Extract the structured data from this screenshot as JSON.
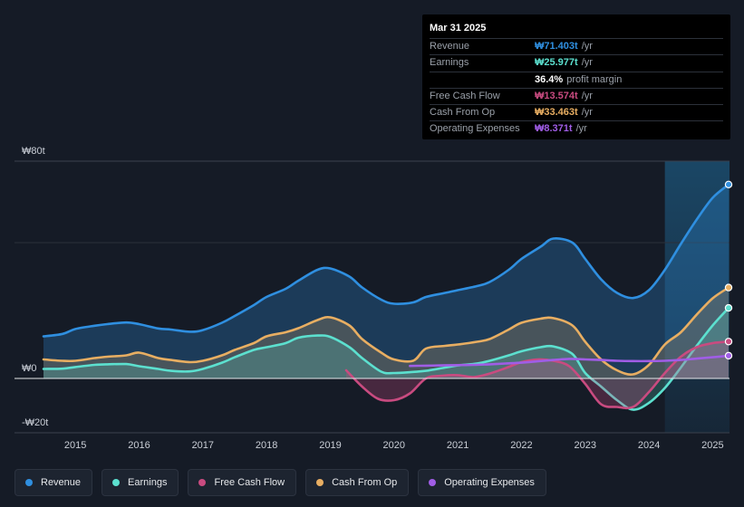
{
  "chart_data": {
    "type": "area",
    "currency_prefix": "₩",
    "ylim": [
      -20,
      80
    ],
    "y_tick_labels": [
      {
        "value": 80,
        "label": "₩80t"
      },
      {
        "value": 0,
        "label": "₩0"
      },
      {
        "value": -20,
        "label": "-₩20t"
      }
    ],
    "x_ticks": [
      {
        "value": 2015,
        "label": "2015"
      },
      {
        "value": 2016,
        "label": "2016"
      },
      {
        "value": 2017,
        "label": "2017"
      },
      {
        "value": 2018,
        "label": "2018"
      },
      {
        "value": 2019,
        "label": "2019"
      },
      {
        "value": 2020,
        "label": "2020"
      },
      {
        "value": 2021,
        "label": "2021"
      },
      {
        "value": 2022,
        "label": "2022"
      },
      {
        "value": 2023,
        "label": "2023"
      },
      {
        "value": 2024,
        "label": "2024"
      },
      {
        "value": 2025,
        "label": "2025"
      }
    ],
    "xlim": [
      2014.5,
      2025.25
    ],
    "highlight_start": 2024.25,
    "series": [
      {
        "name": "Revenue",
        "color": "#2f8fe0",
        "x": [
          2014.5,
          2014.8,
          2015.0,
          2015.3,
          2015.5,
          2015.8,
          2016.0,
          2016.3,
          2016.5,
          2016.8,
          2017.0,
          2017.3,
          2017.5,
          2017.8,
          2018.0,
          2018.3,
          2018.5,
          2018.8,
          2019.0,
          2019.3,
          2019.5,
          2019.8,
          2020.0,
          2020.3,
          2020.5,
          2020.8,
          2021.0,
          2021.3,
          2021.5,
          2021.8,
          2022.0,
          2022.3,
          2022.5,
          2022.8,
          2023.0,
          2023.25,
          2023.5,
          2023.75,
          2024.0,
          2024.25,
          2024.5,
          2024.75,
          2025.0,
          2025.25
        ],
        "values": [
          15.5,
          16.4,
          18.2,
          19.4,
          20.0,
          20.6,
          20.0,
          18.4,
          18.0,
          17.2,
          17.8,
          20.5,
          23.0,
          27.0,
          30.0,
          33.0,
          36.0,
          40.0,
          40.5,
          37.5,
          33.5,
          29.0,
          27.5,
          28.0,
          30.0,
          31.5,
          32.5,
          34.0,
          35.5,
          40.0,
          44.0,
          48.5,
          51.5,
          50.0,
          44.0,
          36.5,
          31.5,
          29.6,
          32.5,
          40.0,
          49.5,
          58.5,
          66.5,
          71.4
        ]
      },
      {
        "name": "Earnings",
        "color": "#5ce0cf",
        "x": [
          2014.5,
          2014.8,
          2015.0,
          2015.3,
          2015.5,
          2015.8,
          2016.0,
          2016.3,
          2016.5,
          2016.8,
          2017.0,
          2017.3,
          2017.5,
          2017.8,
          2018.0,
          2018.3,
          2018.5,
          2018.8,
          2019.0,
          2019.3,
          2019.5,
          2019.8,
          2020.0,
          2020.3,
          2020.5,
          2020.8,
          2021.0,
          2021.3,
          2021.5,
          2021.8,
          2022.0,
          2022.3,
          2022.5,
          2022.8,
          2023.0,
          2023.25,
          2023.5,
          2023.75,
          2024.0,
          2024.25,
          2024.5,
          2024.75,
          2025.0,
          2025.25
        ],
        "values": [
          3.5,
          3.6,
          4.2,
          5.0,
          5.2,
          5.3,
          4.5,
          3.5,
          2.8,
          2.6,
          3.5,
          5.8,
          7.8,
          10.5,
          11.5,
          13.0,
          15.0,
          15.8,
          15.3,
          11.5,
          7.5,
          2.5,
          2.0,
          2.4,
          2.8,
          4.0,
          4.8,
          5.5,
          6.5,
          8.5,
          10.0,
          11.5,
          11.8,
          9.0,
          2.0,
          -3.0,
          -8.0,
          -11.5,
          -9.0,
          -3.5,
          4.0,
          12.0,
          19.5,
          25.977
        ]
      },
      {
        "name": "Free Cash Flow",
        "color": "#c94b80",
        "x": [
          2019.25,
          2019.5,
          2019.75,
          2020.0,
          2020.25,
          2020.5,
          2020.75,
          2021.0,
          2021.25,
          2021.5,
          2021.75,
          2022.0,
          2022.25,
          2022.5,
          2022.75,
          2023.0,
          2023.25,
          2023.5,
          2023.75,
          2024.0,
          2024.25,
          2024.5,
          2024.75,
          2025.0,
          2025.25
        ],
        "values": [
          3.0,
          -3.0,
          -7.5,
          -8.0,
          -5.5,
          0.0,
          1.0,
          1.2,
          0.5,
          1.8,
          3.8,
          6.0,
          7.0,
          6.5,
          4.5,
          -2.0,
          -9.5,
          -10.5,
          -10.5,
          -5.0,
          2.0,
          8.0,
          11.5,
          13.0,
          13.574
        ]
      },
      {
        "name": "Cash From Op",
        "color": "#e8ae62",
        "x": [
          2014.5,
          2014.8,
          2015.0,
          2015.3,
          2015.5,
          2015.8,
          2016.0,
          2016.3,
          2016.5,
          2016.8,
          2017.0,
          2017.3,
          2017.5,
          2017.8,
          2018.0,
          2018.3,
          2018.5,
          2018.8,
          2019.0,
          2019.3,
          2019.5,
          2019.8,
          2020.0,
          2020.3,
          2020.5,
          2020.8,
          2021.0,
          2021.3,
          2021.5,
          2021.8,
          2022.0,
          2022.3,
          2022.5,
          2022.8,
          2023.0,
          2023.25,
          2023.5,
          2023.75,
          2024.0,
          2024.25,
          2024.5,
          2024.75,
          2025.0,
          2025.25
        ],
        "values": [
          7.0,
          6.5,
          6.5,
          7.5,
          8.0,
          8.5,
          9.5,
          7.5,
          6.8,
          6.0,
          6.5,
          8.5,
          10.5,
          13.0,
          15.5,
          17.0,
          18.5,
          21.5,
          22.5,
          19.5,
          14.5,
          9.5,
          7.0,
          6.5,
          11.0,
          12.0,
          12.5,
          13.5,
          14.5,
          18.0,
          20.5,
          22.0,
          22.2,
          19.5,
          13.5,
          7.0,
          3.0,
          1.5,
          5.0,
          12.5,
          17.0,
          23.5,
          29.5,
          33.463
        ]
      },
      {
        "name": "Operating Expenses",
        "color": "#a05de6",
        "x": [
          2020.25,
          2020.5,
          2020.75,
          2021.0,
          2021.25,
          2021.5,
          2021.75,
          2022.0,
          2022.25,
          2022.5,
          2022.75,
          2023.0,
          2023.25,
          2023.5,
          2023.75,
          2024.0,
          2024.25,
          2024.5,
          2024.75,
          2025.0,
          2025.25
        ],
        "values": [
          4.6,
          4.7,
          4.8,
          4.9,
          5.0,
          5.2,
          5.5,
          5.8,
          6.3,
          6.8,
          7.2,
          7.0,
          6.8,
          6.5,
          6.4,
          6.4,
          6.5,
          6.8,
          7.3,
          7.8,
          8.371
        ]
      }
    ]
  },
  "tooltip": {
    "date": "Mar 31 2025",
    "rows": [
      {
        "label": "Revenue",
        "value": "₩71.403t",
        "unit": "/yr",
        "color": "#2f8fe0"
      },
      {
        "label": "Earnings",
        "value": "₩25.977t",
        "unit": "/yr",
        "color": "#5ce0cf"
      },
      {
        "label": "",
        "value": "36.4%",
        "unit": "profit margin",
        "color": "#ffffff"
      },
      {
        "label": "Free Cash Flow",
        "value": "₩13.574t",
        "unit": "/yr",
        "color": "#c94b80"
      },
      {
        "label": "Cash From Op",
        "value": "₩33.463t",
        "unit": "/yr",
        "color": "#e8ae62"
      },
      {
        "label": "Operating Expenses",
        "value": "₩8.371t",
        "unit": "/yr",
        "color": "#a05de6"
      }
    ]
  },
  "legend": [
    {
      "label": "Revenue",
      "color": "#2f8fe0"
    },
    {
      "label": "Earnings",
      "color": "#5ce0cf"
    },
    {
      "label": "Free Cash Flow",
      "color": "#c94b80"
    },
    {
      "label": "Cash From Op",
      "color": "#e8ae62"
    },
    {
      "label": "Operating Expenses",
      "color": "#a05de6"
    }
  ]
}
